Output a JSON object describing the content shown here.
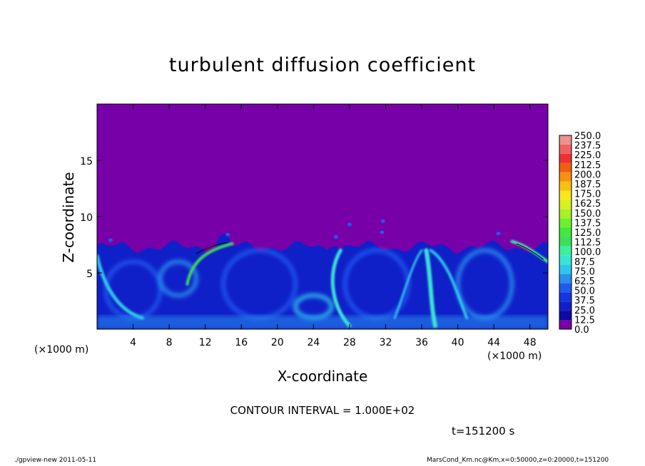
{
  "chart_data": {
    "type": "heatmap",
    "title": "turbulent diffusion coefficient",
    "xlabel": "X-coordinate",
    "ylabel": "Z-coordinate",
    "x_unit": "(×1000 m)",
    "y_unit": "(×1000 m)",
    "xlim": [
      0,
      50
    ],
    "ylim": [
      0,
      20
    ],
    "x_ticks": [
      4,
      8,
      12,
      16,
      20,
      24,
      28,
      32,
      36,
      40,
      44,
      48
    ],
    "y_ticks": [
      5,
      10,
      15
    ],
    "colorbar": {
      "levels": [
        0.0,
        12.5,
        25.0,
        37.5,
        50.0,
        62.5,
        75.0,
        87.5,
        100.0,
        112.5,
        125.0,
        137.5,
        150.0,
        162.5,
        175.0,
        187.5,
        200.0,
        212.5,
        225.0,
        237.5,
        250.0
      ],
      "labels": [
        "0.0",
        "12.5",
        "25.0",
        "37.5",
        "50.0",
        "62.5",
        "75.0",
        "87.5",
        "100.0",
        "112.5",
        "125.0",
        "137.5",
        "150.0",
        "162.5",
        "175.0",
        "187.5",
        "200.0",
        "212.5",
        "225.0",
        "237.5",
        "250.0"
      ],
      "colors": [
        "#7800a8",
        "#0f0aa0",
        "#1020c8",
        "#1535e0",
        "#1e5af0",
        "#2890f0",
        "#2ec6ea",
        "#3ae4d4",
        "#3cf0a0",
        "#3ce05a",
        "#40e840",
        "#6cf030",
        "#a8f028",
        "#d8f020",
        "#f8e818",
        "#f8c010",
        "#f89010",
        "#f06010",
        "#f03030",
        "#f06060",
        "#f09090"
      ]
    },
    "field_description_values": {
      "background": 0.0,
      "mixed_layer_top_z": 7.3,
      "mixed_layer_typical": 30.0,
      "plume_max": 110.0
    },
    "contour_interval": "CONTOUR INTERVAL = 1.000E+02",
    "time": "t=151200 s"
  },
  "footer": {
    "left": "./gpview-new   2011-05-11",
    "right": "MarsCond_Km.nc@Km,x=0:50000,z=0:20000,t=151200"
  }
}
